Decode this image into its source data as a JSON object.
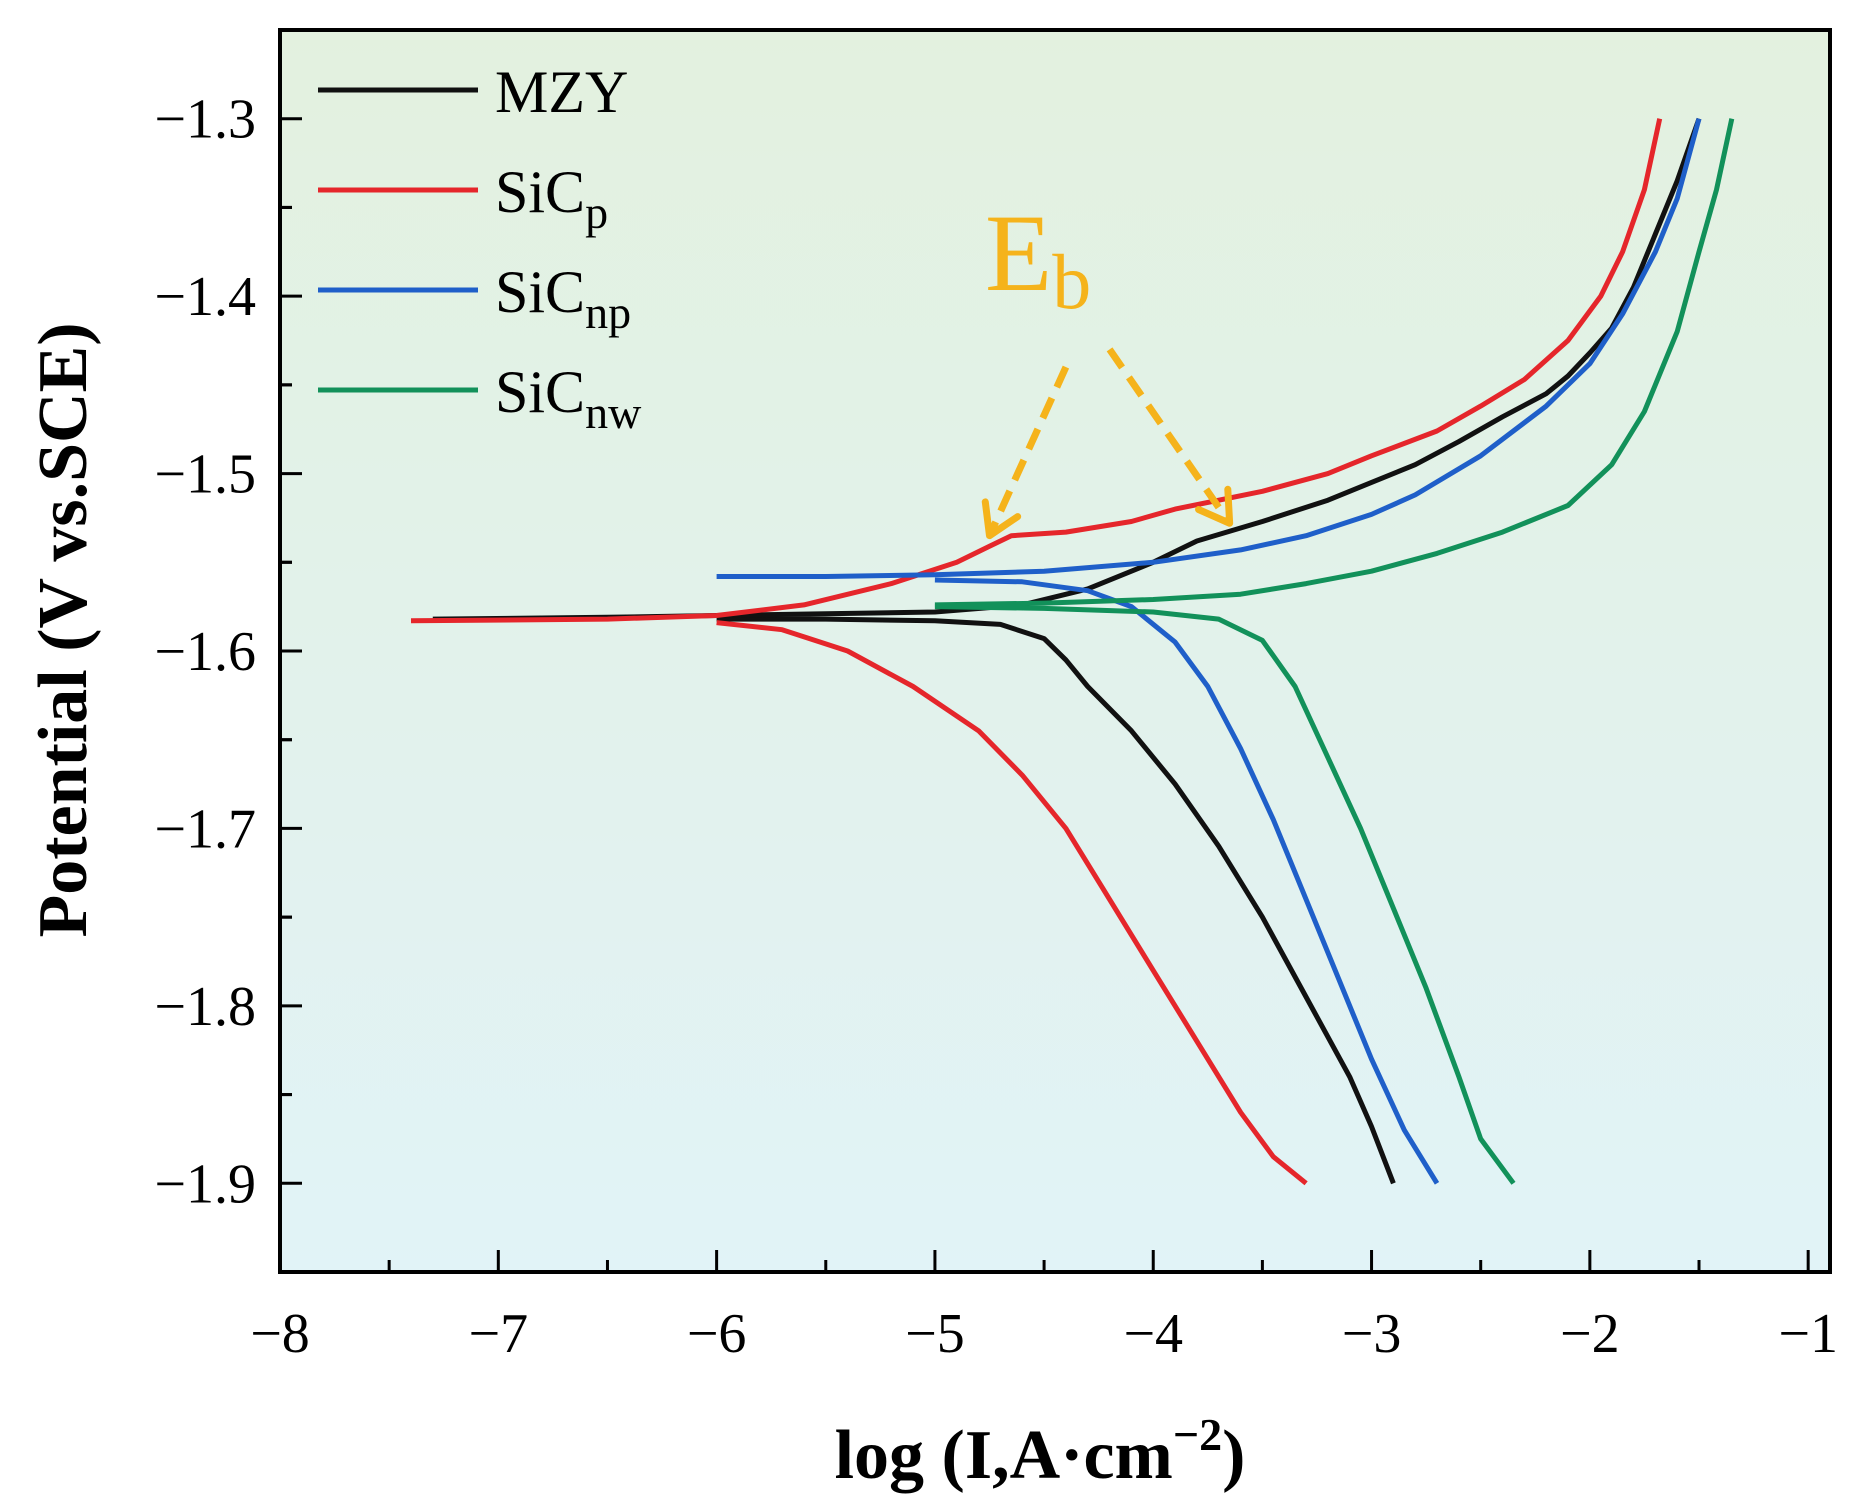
{
  "chart_data": {
    "type": "line",
    "xlabel": "log (I,A·cm",
    "xlabel_sup": "−2",
    "xlabel_close": ")",
    "ylabel": "Potential (V vs.SCE)",
    "xlim": [
      -8,
      -0.9
    ],
    "ylim": [
      -1.95,
      -1.25
    ],
    "xticks": [
      -8,
      -7,
      -6,
      -5,
      -4,
      -3,
      -2,
      -1
    ],
    "xtick_labels": [
      "−8",
      "−7",
      "−6",
      "−5",
      "−4",
      "−3",
      "−2",
      "−1"
    ],
    "yticks": [
      -1.3,
      -1.4,
      -1.5,
      -1.6,
      -1.7,
      -1.8,
      -1.9
    ],
    "ytick_labels": [
      "−1.3",
      "−1.4",
      "−1.5",
      "−1.6",
      "−1.7",
      "−1.8",
      "−1.9"
    ],
    "series": [
      {
        "name": "MZY",
        "base": "MZY",
        "sub": "",
        "color": "#111111",
        "points": [
          [
            -7.3,
            -1.582
          ],
          [
            -6.5,
            -1.581
          ],
          [
            -6.0,
            -1.58
          ],
          [
            -5.5,
            -1.579
          ],
          [
            -5.0,
            -1.578
          ],
          [
            -4.6,
            -1.574
          ],
          [
            -4.3,
            -1.565
          ],
          [
            -4.0,
            -1.55
          ],
          [
            -3.8,
            -1.538
          ],
          [
            -3.5,
            -1.527
          ],
          [
            -3.2,
            -1.515
          ],
          [
            -3.0,
            -1.505
          ],
          [
            -2.8,
            -1.495
          ],
          [
            -2.6,
            -1.482
          ],
          [
            -2.4,
            -1.468
          ],
          [
            -2.2,
            -1.455
          ],
          [
            -2.1,
            -1.445
          ],
          [
            -2.0,
            -1.432
          ],
          [
            -1.9,
            -1.418
          ],
          [
            -1.8,
            -1.395
          ],
          [
            -1.7,
            -1.365
          ],
          [
            -1.6,
            -1.335
          ],
          [
            -1.5,
            -1.3
          ]
        ],
        "points_cathodic": [
          [
            -6.0,
            -1.582
          ],
          [
            -5.5,
            -1.582
          ],
          [
            -5.0,
            -1.583
          ],
          [
            -4.7,
            -1.585
          ],
          [
            -4.5,
            -1.593
          ],
          [
            -4.4,
            -1.605
          ],
          [
            -4.3,
            -1.62
          ],
          [
            -4.1,
            -1.645
          ],
          [
            -3.9,
            -1.675
          ],
          [
            -3.7,
            -1.71
          ],
          [
            -3.5,
            -1.75
          ],
          [
            -3.3,
            -1.795
          ],
          [
            -3.1,
            -1.84
          ],
          [
            -3.0,
            -1.868
          ],
          [
            -2.9,
            -1.9
          ]
        ]
      },
      {
        "name": "SiCp",
        "base": "SiC",
        "sub": "p",
        "color": "#e5262b",
        "points": [
          [
            -7.4,
            -1.583
          ],
          [
            -6.5,
            -1.582
          ],
          [
            -6.0,
            -1.58
          ],
          [
            -5.6,
            -1.574
          ],
          [
            -5.2,
            -1.562
          ],
          [
            -4.9,
            -1.55
          ],
          [
            -4.75,
            -1.541
          ],
          [
            -4.65,
            -1.535
          ],
          [
            -4.4,
            -1.533
          ],
          [
            -4.1,
            -1.527
          ],
          [
            -3.9,
            -1.52
          ],
          [
            -3.5,
            -1.51
          ],
          [
            -3.2,
            -1.5
          ],
          [
            -3.0,
            -1.49
          ],
          [
            -2.7,
            -1.476
          ],
          [
            -2.5,
            -1.462
          ],
          [
            -2.3,
            -1.447
          ],
          [
            -2.1,
            -1.425
          ],
          [
            -1.95,
            -1.4
          ],
          [
            -1.85,
            -1.375
          ],
          [
            -1.75,
            -1.34
          ],
          [
            -1.68,
            -1.3
          ]
        ],
        "points_cathodic": [
          [
            -6.0,
            -1.584
          ],
          [
            -5.7,
            -1.588
          ],
          [
            -5.4,
            -1.6
          ],
          [
            -5.1,
            -1.62
          ],
          [
            -4.8,
            -1.645
          ],
          [
            -4.6,
            -1.67
          ],
          [
            -4.4,
            -1.7
          ],
          [
            -4.2,
            -1.74
          ],
          [
            -4.0,
            -1.78
          ],
          [
            -3.8,
            -1.82
          ],
          [
            -3.6,
            -1.86
          ],
          [
            -3.45,
            -1.885
          ],
          [
            -3.3,
            -1.9
          ]
        ]
      },
      {
        "name": "SiCnp",
        "base": "SiC",
        "sub": "np",
        "color": "#1f5fc9",
        "points": [
          [
            -6.0,
            -1.558
          ],
          [
            -5.5,
            -1.558
          ],
          [
            -5.0,
            -1.557
          ],
          [
            -4.5,
            -1.555
          ],
          [
            -4.0,
            -1.55
          ],
          [
            -3.6,
            -1.543
          ],
          [
            -3.3,
            -1.535
          ],
          [
            -3.0,
            -1.523
          ],
          [
            -2.8,
            -1.512
          ],
          [
            -2.5,
            -1.49
          ],
          [
            -2.2,
            -1.462
          ],
          [
            -2.0,
            -1.438
          ],
          [
            -1.85,
            -1.41
          ],
          [
            -1.7,
            -1.375
          ],
          [
            -1.6,
            -1.345
          ],
          [
            -1.5,
            -1.3
          ]
        ],
        "points_cathodic": [
          [
            -5.0,
            -1.56
          ],
          [
            -4.6,
            -1.561
          ],
          [
            -4.3,
            -1.566
          ],
          [
            -4.1,
            -1.575
          ],
          [
            -3.9,
            -1.595
          ],
          [
            -3.75,
            -1.62
          ],
          [
            -3.6,
            -1.655
          ],
          [
            -3.45,
            -1.695
          ],
          [
            -3.3,
            -1.74
          ],
          [
            -3.15,
            -1.785
          ],
          [
            -3.0,
            -1.83
          ],
          [
            -2.85,
            -1.87
          ],
          [
            -2.7,
            -1.9
          ]
        ]
      },
      {
        "name": "SiCnw",
        "base": "SiC",
        "sub": "nw",
        "color": "#12915a",
        "points": [
          [
            -5.0,
            -1.574
          ],
          [
            -4.5,
            -1.573
          ],
          [
            -4.0,
            -1.571
          ],
          [
            -3.6,
            -1.568
          ],
          [
            -3.3,
            -1.562
          ],
          [
            -3.0,
            -1.555
          ],
          [
            -2.7,
            -1.545
          ],
          [
            -2.4,
            -1.533
          ],
          [
            -2.1,
            -1.518
          ],
          [
            -1.9,
            -1.495
          ],
          [
            -1.75,
            -1.465
          ],
          [
            -1.6,
            -1.42
          ],
          [
            -1.5,
            -1.375
          ],
          [
            -1.42,
            -1.34
          ],
          [
            -1.35,
            -1.3
          ]
        ],
        "points_cathodic": [
          [
            -5.0,
            -1.575
          ],
          [
            -4.5,
            -1.576
          ],
          [
            -4.0,
            -1.578
          ],
          [
            -3.7,
            -1.582
          ],
          [
            -3.5,
            -1.594
          ],
          [
            -3.35,
            -1.62
          ],
          [
            -3.2,
            -1.66
          ],
          [
            -3.05,
            -1.7
          ],
          [
            -2.9,
            -1.745
          ],
          [
            -2.75,
            -1.79
          ],
          [
            -2.6,
            -1.84
          ],
          [
            -2.5,
            -1.875
          ],
          [
            -2.35,
            -1.9
          ]
        ]
      }
    ],
    "annotation": {
      "base": "E",
      "sub": "b",
      "color": "#f5b31b",
      "arrows_to": [
        [
          -4.75,
          -1.535
        ],
        [
          -3.65,
          -1.528
        ]
      ],
      "arrows_from": [
        [
          -4.4,
          -1.44
        ],
        [
          -4.2,
          -1.43
        ]
      ]
    }
  }
}
